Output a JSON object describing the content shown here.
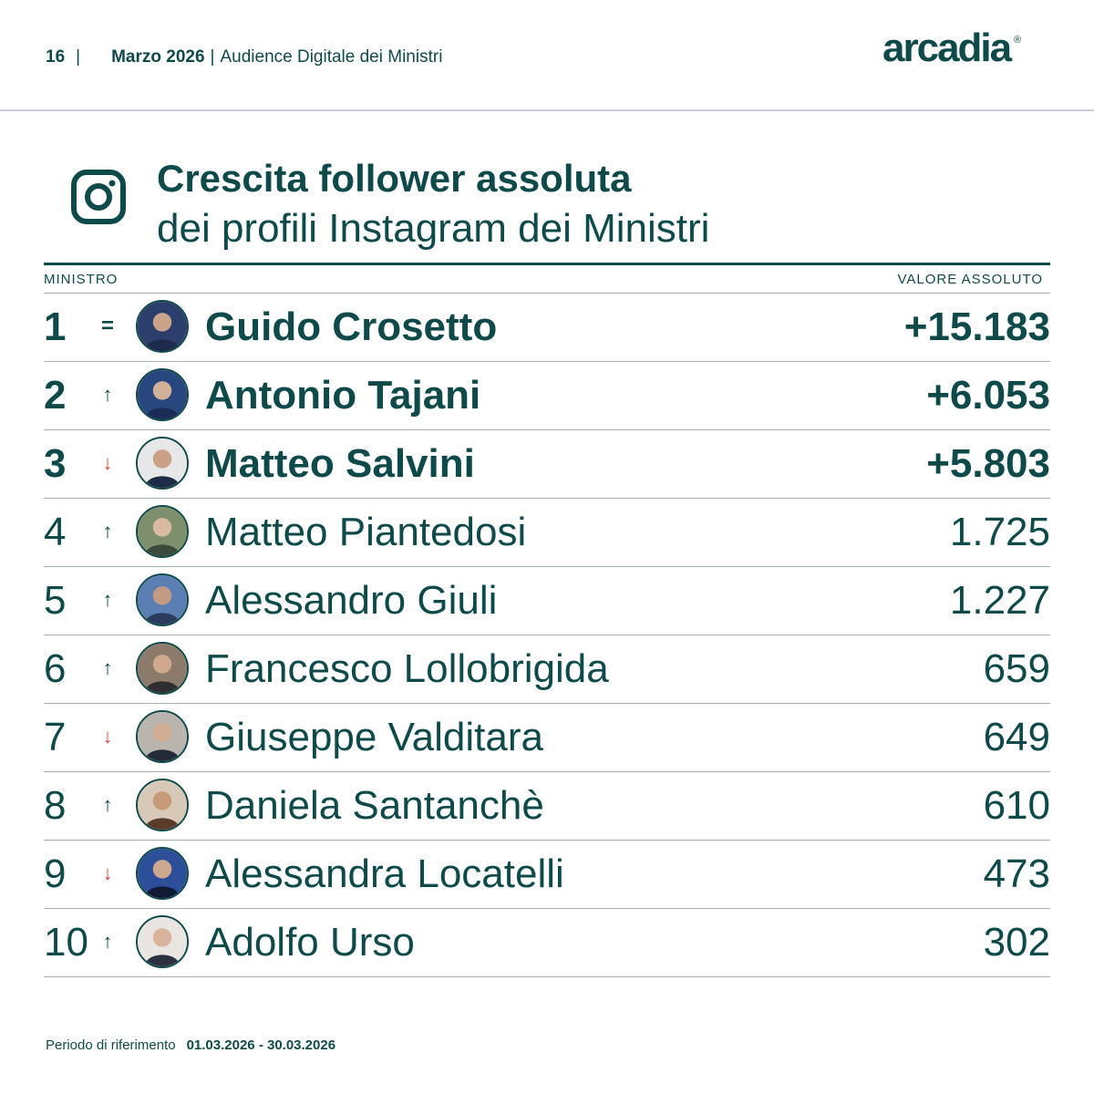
{
  "header": {
    "page_number": "16",
    "month": "Marzo 2026",
    "report_title": "Audience Digitale dei Ministri",
    "logo_text": "arcadia",
    "logo_mark": "®"
  },
  "section": {
    "icon": "instagram-icon",
    "title": "Crescita follower assoluta",
    "subtitle": "dei profili Instagram dei Ministri"
  },
  "table": {
    "col_minister": "MINISTRO",
    "col_value": "VALORE ASSOLUTO",
    "rows": [
      {
        "rank": "1",
        "trend": "=",
        "trend_type": "eq",
        "name": "Guido Crosetto",
        "value": "+15.183",
        "top": true
      },
      {
        "rank": "2",
        "trend": "↑",
        "trend_type": "up",
        "name": "Antonio Tajani",
        "value": "+6.053",
        "top": true
      },
      {
        "rank": "3",
        "trend": "↓",
        "trend_type": "down",
        "name": "Matteo Salvini",
        "value": "+5.803",
        "top": true
      },
      {
        "rank": "4",
        "trend": "↑",
        "trend_type": "up",
        "name": "Matteo Piantedosi",
        "value": "1.725",
        "top": false
      },
      {
        "rank": "5",
        "trend": "↑",
        "trend_type": "up",
        "name": "Alessandro Giuli",
        "value": "1.227",
        "top": false
      },
      {
        "rank": "6",
        "trend": "↑",
        "trend_type": "up",
        "name": "Francesco Lollobrigida",
        "value": "659",
        "top": false
      },
      {
        "rank": "7",
        "trend": "↓",
        "trend_type": "down",
        "name": "Giuseppe Valditara",
        "value": "649",
        "top": false
      },
      {
        "rank": "8",
        "trend": "↑",
        "trend_type": "up",
        "name": "Daniela Santanchè",
        "value": "610",
        "top": false
      },
      {
        "rank": "9",
        "trend": "↓",
        "trend_type": "down",
        "name": "Alessandra Locatelli",
        "value": "473",
        "top": false
      },
      {
        "rank": "10",
        "trend": "↑",
        "trend_type": "up",
        "name": "Adolfo Urso",
        "value": "302",
        "top": false
      }
    ]
  },
  "footer": {
    "label": "Periodo di riferimento",
    "dates": "01.03.2026 - 30.03.2026"
  },
  "colors": {
    "primary": "#0f4a4b",
    "down": "#d9443f",
    "divider": "#9fb1b1"
  }
}
